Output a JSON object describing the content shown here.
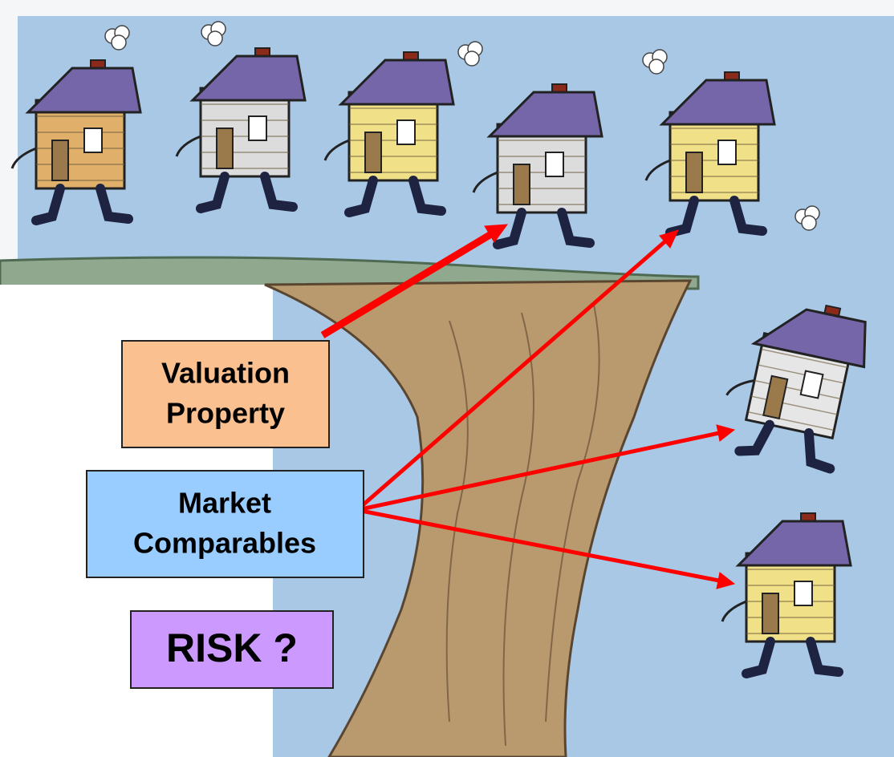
{
  "boxes": [
    {
      "lines": [
        "Valuation",
        "Property"
      ]
    },
    {
      "lines": [
        "Market",
        "Comparables"
      ]
    },
    {
      "lines": [
        "RISK ?"
      ]
    }
  ]
}
